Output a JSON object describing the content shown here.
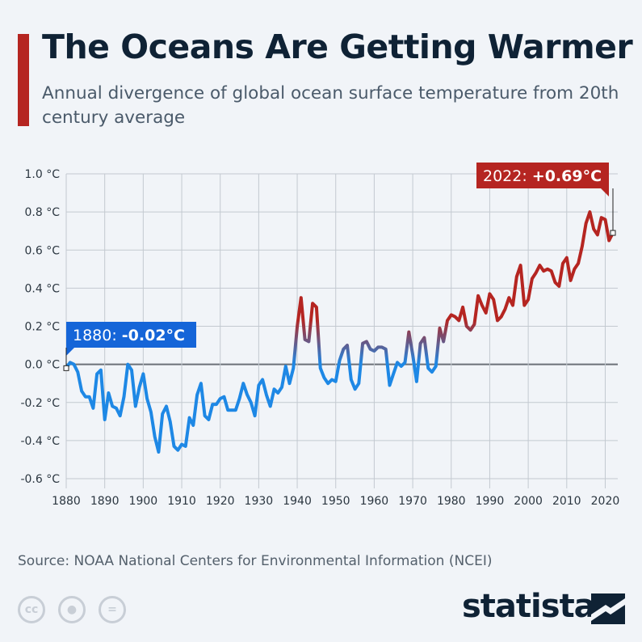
{
  "header": {
    "title": "The Oceans Are Getting Warmer",
    "subtitle": "Annual divergence of global ocean surface temperature from 20th century average"
  },
  "colors": {
    "accent": "#b52521",
    "cool": "#1e88e5",
    "dark": "#0f2235"
  },
  "chart_data": {
    "type": "line",
    "title": "The Oceans Are Getting Warmer",
    "subtitle": "Annual divergence of global ocean surface temperature from 20th century average",
    "xlabel": "",
    "ylabel": "",
    "xlim": [
      1880,
      2022
    ],
    "ylim": [
      -0.6,
      1.0
    ],
    "grid": true,
    "x_ticks": [
      "1880",
      "1890",
      "1900",
      "1910",
      "1920",
      "1930",
      "1940",
      "1950",
      "1960",
      "1970",
      "1980",
      "1990",
      "2000",
      "2010",
      "2020"
    ],
    "y_ticks": [
      "1.0 °C",
      "0.8 °C",
      "0.6 °C",
      "0.4 °C",
      "0.2 °C",
      "0.0 °C",
      "-0.2 °C",
      "-0.4 °C",
      "-0.6 °C"
    ],
    "y_tick_values": [
      1.0,
      0.8,
      0.6,
      0.4,
      0.2,
      0.0,
      -0.2,
      -0.4,
      -0.6
    ],
    "x_start": 1880,
    "values": [
      -0.02,
      0.01,
      0.0,
      -0.04,
      -0.14,
      -0.17,
      -0.17,
      -0.23,
      -0.05,
      -0.03,
      -0.29,
      -0.15,
      -0.22,
      -0.23,
      -0.27,
      -0.17,
      0.0,
      -0.03,
      -0.22,
      -0.12,
      -0.05,
      -0.18,
      -0.25,
      -0.38,
      -0.46,
      -0.26,
      -0.22,
      -0.3,
      -0.43,
      -0.45,
      -0.42,
      -0.43,
      -0.28,
      -0.32,
      -0.16,
      -0.1,
      -0.27,
      -0.29,
      -0.21,
      -0.21,
      -0.18,
      -0.17,
      -0.24,
      -0.24,
      -0.24,
      -0.18,
      -0.1,
      -0.16,
      -0.2,
      -0.27,
      -0.11,
      -0.08,
      -0.16,
      -0.22,
      -0.13,
      -0.15,
      -0.12,
      -0.01,
      -0.1,
      -0.02,
      0.2,
      0.35,
      0.13,
      0.12,
      0.32,
      0.3,
      -0.02,
      -0.07,
      -0.1,
      -0.08,
      -0.09,
      0.02,
      0.08,
      0.1,
      -0.08,
      -0.13,
      -0.1,
      0.11,
      0.12,
      0.08,
      0.07,
      0.09,
      0.09,
      0.08,
      -0.11,
      -0.05,
      0.01,
      -0.01,
      0.01,
      0.17,
      0.05,
      -0.09,
      0.11,
      0.14,
      -0.02,
      -0.04,
      -0.01,
      0.19,
      0.12,
      0.23,
      0.26,
      0.25,
      0.23,
      0.3,
      0.2,
      0.18,
      0.21,
      0.36,
      0.31,
      0.27,
      0.37,
      0.34,
      0.23,
      0.25,
      0.29,
      0.35,
      0.31,
      0.46,
      0.52,
      0.31,
      0.34,
      0.45,
      0.48,
      0.52,
      0.49,
      0.5,
      0.49,
      0.43,
      0.41,
      0.53,
      0.56,
      0.44,
      0.5,
      0.53,
      0.62,
      0.74,
      0.8,
      0.71,
      0.68,
      0.77,
      0.76,
      0.65,
      0.69
    ],
    "annotations": [
      {
        "label": "1880: ",
        "value": "-0.02°C"
      },
      {
        "label": "2022: ",
        "value": "+0.69°C"
      }
    ]
  },
  "footer": {
    "source": "Source: NOAA National Centers for Environmental Information (NCEI)",
    "logo": "statista",
    "cc_icons": [
      "cc-icon",
      "person-icon",
      "equals-icon"
    ]
  }
}
